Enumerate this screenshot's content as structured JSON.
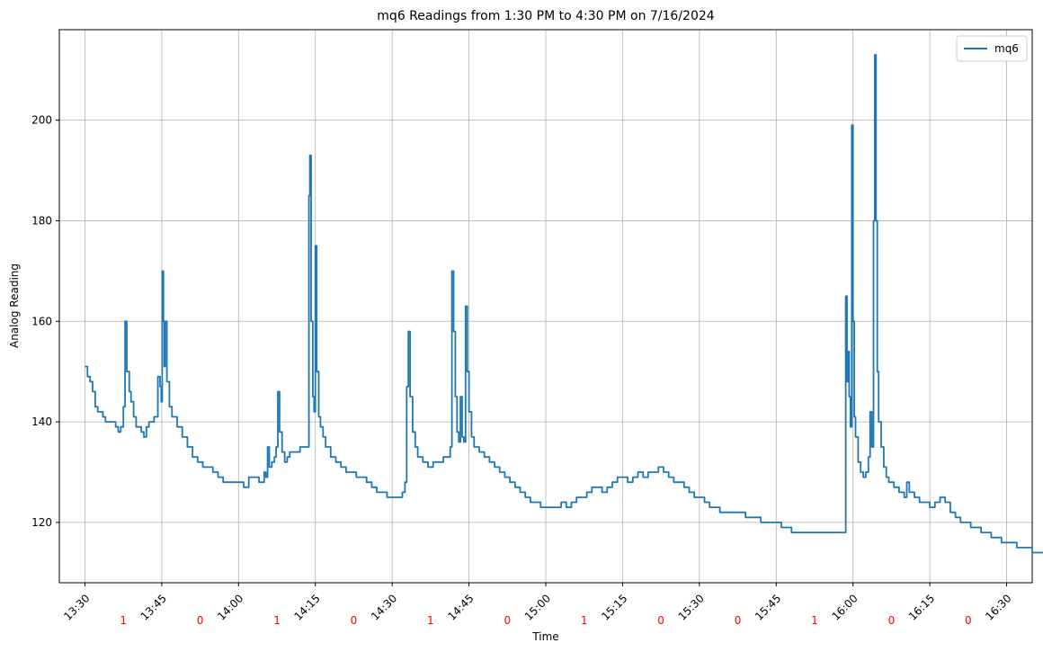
{
  "chart_data": {
    "type": "line",
    "title": "mq6 Readings from 1:30 PM to 4:30 PM on 7/16/2024",
    "xlabel": "Time",
    "ylabel": "Analog Reading",
    "x_unit": "time of day (HH:MM)",
    "xlim": [
      "13:25",
      "16:35"
    ],
    "ylim": [
      108,
      218
    ],
    "x_ticks": [
      "13:30",
      "13:45",
      "14:00",
      "14:15",
      "14:30",
      "14:45",
      "15:00",
      "15:15",
      "15:30",
      "15:45",
      "16:00",
      "16:15",
      "16:30"
    ],
    "y_ticks": [
      120,
      140,
      160,
      180,
      200
    ],
    "grid": true,
    "legend": {
      "placement": "top-right",
      "entries": [
        "mq6"
      ]
    },
    "series": [
      {
        "name": "mq6",
        "color": "#1f77b4",
        "points": [
          [
            "13:30",
            151
          ],
          [
            "13:30:30",
            149
          ],
          [
            "13:31",
            148
          ],
          [
            "13:31:30",
            146
          ],
          [
            "13:32",
            143
          ],
          [
            "13:32:30",
            142
          ],
          [
            "13:33",
            142
          ],
          [
            "13:33:30",
            141
          ],
          [
            "13:34",
            140
          ],
          [
            "13:34:30",
            140
          ],
          [
            "13:35",
            140
          ],
          [
            "13:35:30",
            140
          ],
          [
            "13:36",
            139
          ],
          [
            "13:36:30",
            138
          ],
          [
            "13:37",
            139
          ],
          [
            "13:37:30",
            143
          ],
          [
            "13:37:50",
            160
          ],
          [
            "13:38:10",
            150
          ],
          [
            "13:38:40",
            146
          ],
          [
            "13:39",
            144
          ],
          [
            "13:39:30",
            141
          ],
          [
            "13:40",
            139
          ],
          [
            "13:40:30",
            139
          ],
          [
            "13:41",
            138
          ],
          [
            "13:41:30",
            137
          ],
          [
            "13:42",
            139
          ],
          [
            "13:42:30",
            140
          ],
          [
            "13:43",
            140
          ],
          [
            "13:43:30",
            141
          ],
          [
            "13:44",
            141
          ],
          [
            "13:44:15",
            149
          ],
          [
            "13:44:40",
            147
          ],
          [
            "13:44:55",
            144
          ],
          [
            "13:45:05",
            170
          ],
          [
            "13:45:20",
            160
          ],
          [
            "13:45:30",
            151
          ],
          [
            "13:45:40",
            160
          ],
          [
            "13:46",
            148
          ],
          [
            "13:46:30",
            143
          ],
          [
            "13:47",
            141
          ],
          [
            "13:48",
            139
          ],
          [
            "13:49",
            137
          ],
          [
            "13:50",
            135
          ],
          [
            "13:51",
            133
          ],
          [
            "13:52",
            132
          ],
          [
            "13:53",
            131
          ],
          [
            "13:54",
            131
          ],
          [
            "13:55",
            130
          ],
          [
            "13:56",
            129
          ],
          [
            "13:57",
            128
          ],
          [
            "13:58",
            128
          ],
          [
            "13:59",
            128
          ],
          [
            "14:00",
            128
          ],
          [
            "14:01",
            127
          ],
          [
            "14:02",
            129
          ],
          [
            "14:03",
            129
          ],
          [
            "14:04",
            128
          ],
          [
            "14:05",
            130
          ],
          [
            "14:05:20",
            129
          ],
          [
            "14:05:40",
            135
          ],
          [
            "14:06",
            131
          ],
          [
            "14:06:30",
            132
          ],
          [
            "14:07",
            133
          ],
          [
            "14:07:20",
            135
          ],
          [
            "14:07:40",
            146
          ],
          [
            "14:08",
            138
          ],
          [
            "14:08:30",
            134
          ],
          [
            "14:09",
            132
          ],
          [
            "14:09:30",
            133
          ],
          [
            "14:10",
            134
          ],
          [
            "14:11",
            134
          ],
          [
            "14:12",
            135
          ],
          [
            "14:13",
            135
          ],
          [
            "14:13:30",
            135
          ],
          [
            "14:13:45",
            185
          ],
          [
            "14:13:55",
            193
          ],
          [
            "14:14:10",
            160
          ],
          [
            "14:14:30",
            145
          ],
          [
            "14:14:45",
            142
          ],
          [
            "14:15",
            175
          ],
          [
            "14:15:15",
            150
          ],
          [
            "14:15:40",
            141
          ],
          [
            "14:16",
            139
          ],
          [
            "14:16:30",
            137
          ],
          [
            "14:17",
            135
          ],
          [
            "14:18",
            133
          ],
          [
            "14:19",
            132
          ],
          [
            "14:20",
            131
          ],
          [
            "14:21",
            130
          ],
          [
            "14:22",
            130
          ],
          [
            "14:23",
            129
          ],
          [
            "14:24",
            129
          ],
          [
            "14:25",
            128
          ],
          [
            "14:26",
            127
          ],
          [
            "14:27",
            126
          ],
          [
            "14:28",
            126
          ],
          [
            "14:29",
            125
          ],
          [
            "14:30",
            125
          ],
          [
            "14:31",
            125
          ],
          [
            "14:32",
            126
          ],
          [
            "14:32:30",
            128
          ],
          [
            "14:32:50",
            147
          ],
          [
            "14:33:10",
            158
          ],
          [
            "14:33:30",
            145
          ],
          [
            "14:34",
            138
          ],
          [
            "14:34:30",
            135
          ],
          [
            "14:35",
            133
          ],
          [
            "14:36",
            132
          ],
          [
            "14:37",
            131
          ],
          [
            "14:38",
            132
          ],
          [
            "14:39",
            132
          ],
          [
            "14:40",
            133
          ],
          [
            "14:41",
            133
          ],
          [
            "14:41:20",
            135
          ],
          [
            "14:41:40",
            170
          ],
          [
            "14:42",
            158
          ],
          [
            "14:42:20",
            145
          ],
          [
            "14:42:40",
            138
          ],
          [
            "14:43",
            136
          ],
          [
            "14:43:20",
            145
          ],
          [
            "14:43:40",
            137
          ],
          [
            "14:44",
            136
          ],
          [
            "14:44:20",
            163
          ],
          [
            "14:44:40",
            150
          ],
          [
            "14:45",
            142
          ],
          [
            "14:45:30",
            137
          ],
          [
            "14:46",
            135
          ],
          [
            "14:47",
            134
          ],
          [
            "14:48",
            133
          ],
          [
            "14:49",
            132
          ],
          [
            "14:50",
            131
          ],
          [
            "14:51",
            130
          ],
          [
            "14:52",
            129
          ],
          [
            "14:53",
            128
          ],
          [
            "14:54",
            127
          ],
          [
            "14:55",
            126
          ],
          [
            "14:56",
            125
          ],
          [
            "14:57",
            124
          ],
          [
            "14:58",
            124
          ],
          [
            "14:59",
            123
          ],
          [
            "15:00",
            123
          ],
          [
            "15:01",
            123
          ],
          [
            "15:02",
            123
          ],
          [
            "15:03",
            124
          ],
          [
            "15:04",
            123
          ],
          [
            "15:05",
            124
          ],
          [
            "15:06",
            125
          ],
          [
            "15:07",
            125
          ],
          [
            "15:08",
            126
          ],
          [
            "15:09",
            127
          ],
          [
            "15:10",
            127
          ],
          [
            "15:11",
            126
          ],
          [
            "15:12",
            127
          ],
          [
            "15:13",
            128
          ],
          [
            "15:14",
            129
          ],
          [
            "15:15",
            129
          ],
          [
            "15:16",
            128
          ],
          [
            "15:17",
            129
          ],
          [
            "15:18",
            130
          ],
          [
            "15:19",
            129
          ],
          [
            "15:20",
            130
          ],
          [
            "15:21",
            130
          ],
          [
            "15:22",
            131
          ],
          [
            "15:23",
            130
          ],
          [
            "15:24",
            129
          ],
          [
            "15:25",
            128
          ],
          [
            "15:26",
            128
          ],
          [
            "15:27",
            127
          ],
          [
            "15:28",
            126
          ],
          [
            "15:29",
            125
          ],
          [
            "15:30",
            125
          ],
          [
            "15:31",
            124
          ],
          [
            "15:32",
            123
          ],
          [
            "15:33",
            123
          ],
          [
            "15:34",
            122
          ],
          [
            "15:35",
            122
          ],
          [
            "15:36",
            122
          ],
          [
            "15:37",
            122
          ],
          [
            "15:38",
            122
          ],
          [
            "15:39",
            121
          ],
          [
            "15:40",
            121
          ],
          [
            "15:41",
            121
          ],
          [
            "15:42",
            120
          ],
          [
            "15:43",
            120
          ],
          [
            "15:44",
            120
          ],
          [
            "15:45",
            120
          ],
          [
            "15:46",
            119
          ],
          [
            "15:47",
            119
          ],
          [
            "15:48",
            118
          ],
          [
            "15:49",
            118
          ],
          [
            "15:50",
            118
          ],
          [
            "15:51",
            118
          ],
          [
            "15:52",
            118
          ],
          [
            "15:53",
            118
          ],
          [
            "15:54",
            118
          ],
          [
            "15:55",
            118
          ],
          [
            "15:56",
            118
          ],
          [
            "15:57",
            118
          ],
          [
            "15:58",
            118
          ],
          [
            "15:58:20",
            118
          ],
          [
            "15:58:35",
            165
          ],
          [
            "15:58:50",
            148
          ],
          [
            "15:59",
            154
          ],
          [
            "15:59:15",
            145
          ],
          [
            "15:59:30",
            139
          ],
          [
            "15:59:45",
            199
          ],
          [
            "16:00",
            160
          ],
          [
            "16:00:15",
            141
          ],
          [
            "16:00:30",
            137
          ],
          [
            "16:01",
            132
          ],
          [
            "16:01:30",
            130
          ],
          [
            "16:02",
            129
          ],
          [
            "16:02:30",
            130
          ],
          [
            "16:03",
            133
          ],
          [
            "16:03:20",
            142
          ],
          [
            "16:03:40",
            135
          ],
          [
            "16:04",
            180
          ],
          [
            "16:04:15",
            213
          ],
          [
            "16:04:30",
            180
          ],
          [
            "16:04:45",
            150
          ],
          [
            "16:05",
            140
          ],
          [
            "16:05:30",
            135
          ],
          [
            "16:06",
            131
          ],
          [
            "16:06:30",
            129
          ],
          [
            "16:07",
            128
          ],
          [
            "16:08",
            127
          ],
          [
            "16:09",
            126
          ],
          [
            "16:10",
            125
          ],
          [
            "16:10:30",
            128
          ],
          [
            "16:11",
            126
          ],
          [
            "16:12",
            125
          ],
          [
            "16:13",
            124
          ],
          [
            "16:14",
            124
          ],
          [
            "16:15",
            123
          ],
          [
            "16:16",
            124
          ],
          [
            "16:17",
            125
          ],
          [
            "16:18",
            124
          ],
          [
            "16:19",
            122
          ],
          [
            "16:20",
            121
          ],
          [
            "16:21",
            120
          ],
          [
            "16:22",
            120
          ],
          [
            "16:23",
            119
          ],
          [
            "16:24",
            119
          ],
          [
            "16:25",
            118
          ],
          [
            "16:26",
            118
          ],
          [
            "16:27",
            117
          ],
          [
            "16:28",
            117
          ],
          [
            "16:29",
            116
          ],
          [
            "16:30",
            116
          ],
          [
            "16:31",
            116
          ],
          [
            "16:32",
            115
          ],
          [
            "16:33",
            115
          ],
          [
            "16:34",
            115
          ],
          [
            "16:35",
            114
          ],
          [
            "16:36",
            114
          ],
          [
            "16:37",
            114
          ],
          [
            "16:38",
            114
          ],
          [
            "16:39",
            113
          ]
        ]
      }
    ],
    "annotations": {
      "color": "#ff0000",
      "items": [
        {
          "x": "13:37:30",
          "text": "1"
        },
        {
          "x": "13:52:30",
          "text": "0"
        },
        {
          "x": "14:07:30",
          "text": "1"
        },
        {
          "x": "14:22:30",
          "text": "0"
        },
        {
          "x": "14:37:30",
          "text": "1"
        },
        {
          "x": "14:52:30",
          "text": "0"
        },
        {
          "x": "15:07:30",
          "text": "1"
        },
        {
          "x": "15:22:30",
          "text": "0"
        },
        {
          "x": "15:37:30",
          "text": "0"
        },
        {
          "x": "15:52:30",
          "text": "1"
        },
        {
          "x": "16:07:30",
          "text": "0"
        },
        {
          "x": "16:22:30",
          "text": "0"
        }
      ]
    }
  }
}
